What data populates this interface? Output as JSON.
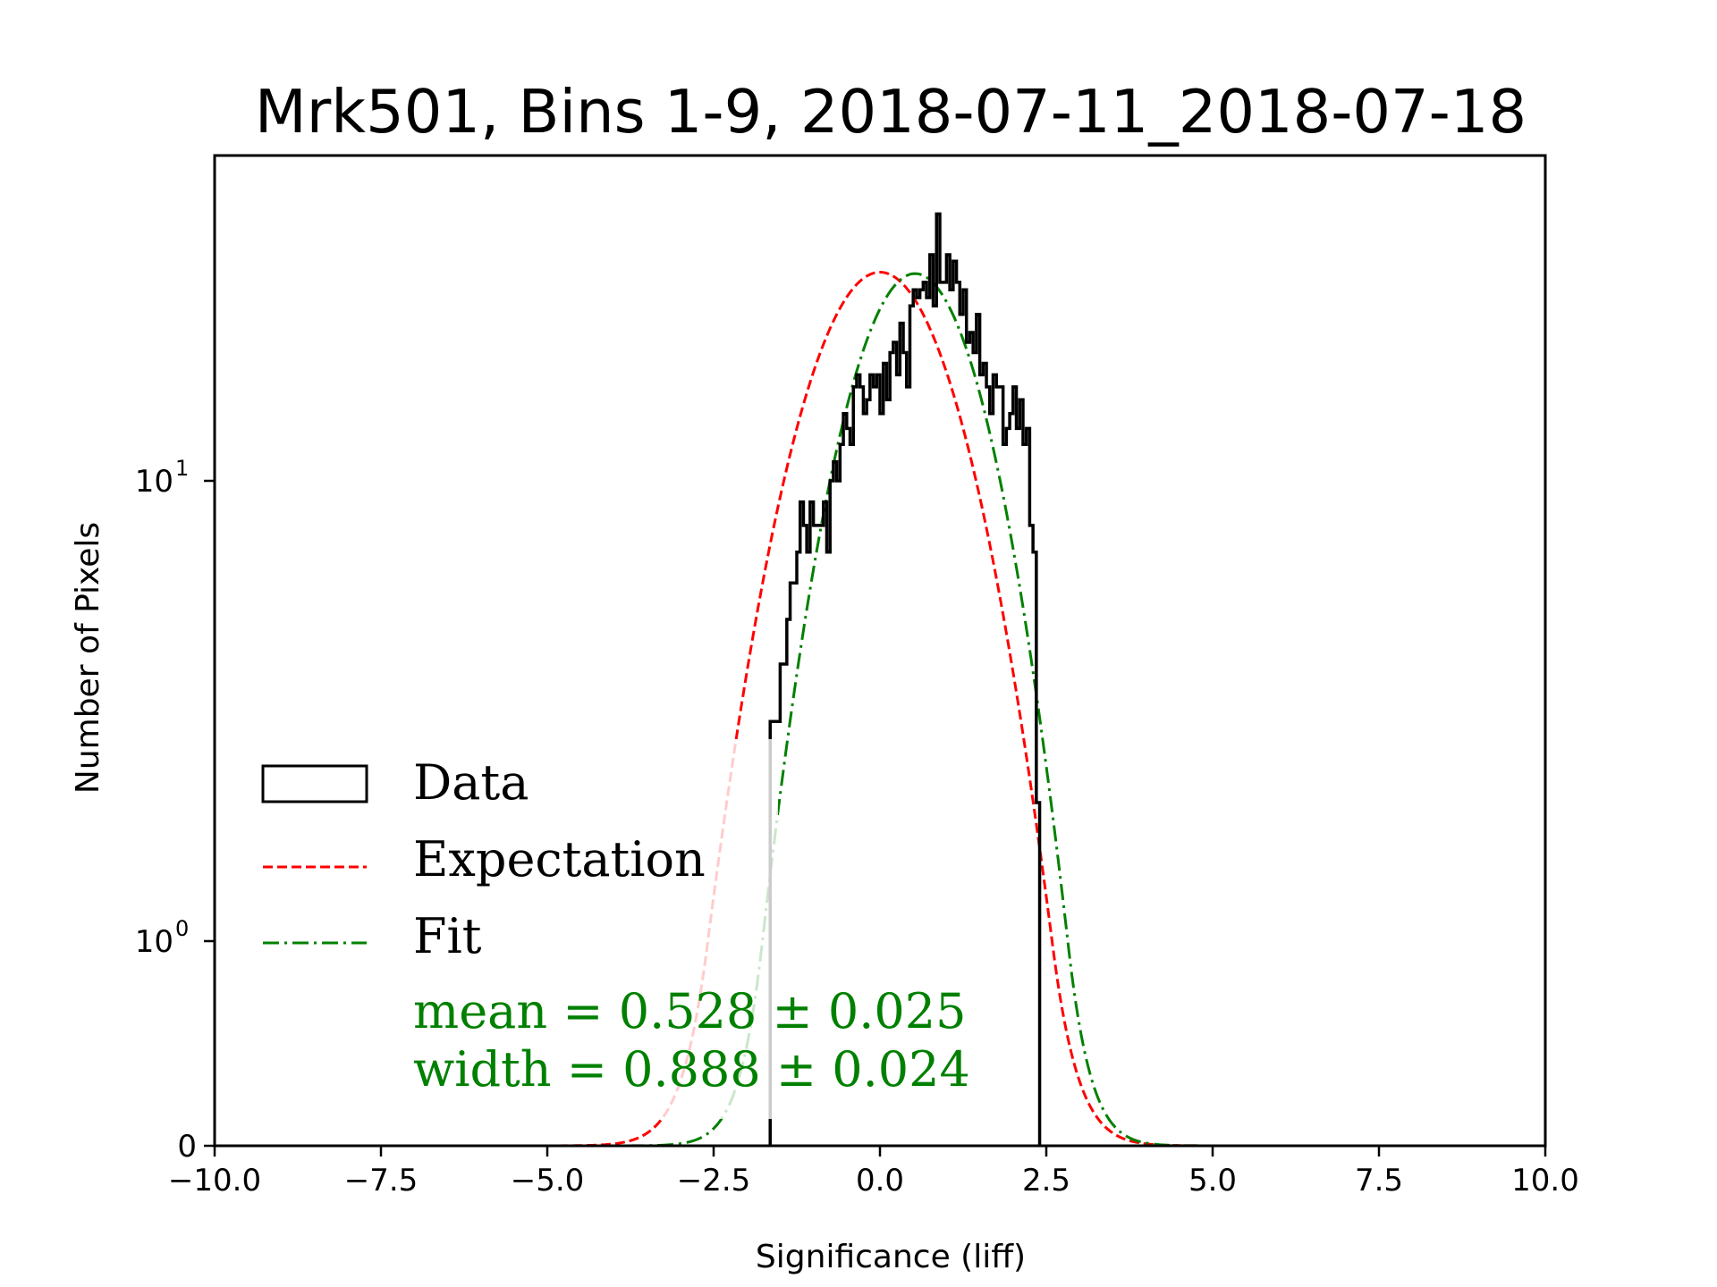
{
  "chart_data": {
    "type": "histogram",
    "title": "Mrk501, Bins 1-9, 2018-07-11_2018-07-18",
    "xlabel": "Significance (liff)",
    "ylabel": "Number of Pixels",
    "xlim": [
      -10.0,
      10.0
    ],
    "ylim": [
      0,
      51
    ],
    "yscale": "symlog",
    "y_linthresh": 1,
    "grid": false,
    "x_ticks": [
      -10.0,
      -7.5,
      -5.0,
      -2.5,
      0.0,
      2.5,
      5.0,
      7.5,
      10.0
    ],
    "x_tick_labels": [
      "−10.0",
      "−7.5",
      "−5.0",
      "−2.5",
      "0.0",
      "2.5",
      "5.0",
      "7.5",
      "10.0"
    ],
    "y_ticks": [
      {
        "value": 0,
        "base": "0",
        "exp": ""
      },
      {
        "value": 1,
        "base": "10",
        "exp": "0"
      },
      {
        "value": 10,
        "base": "10",
        "exp": "1"
      }
    ],
    "histogram": {
      "name": "Data",
      "color": "#000000",
      "bin_start": -1.65,
      "bin_width": 0.05,
      "counts": [
        3,
        3,
        3,
        4,
        4,
        5,
        6,
        6,
        7,
        9,
        8,
        7,
        9,
        8,
        8,
        8,
        9,
        7,
        10,
        11,
        10,
        12,
        14,
        13,
        12,
        16,
        17,
        16,
        14,
        15,
        17,
        16,
        17,
        14,
        18,
        15,
        19,
        20,
        17,
        22,
        19,
        16,
        24,
        26,
        25,
        26,
        27,
        25,
        31,
        24,
        38,
        27,
        27,
        31,
        26,
        30,
        27,
        23,
        26,
        20,
        21,
        19,
        23,
        17,
        18,
        16,
        14,
        17,
        16,
        16,
        12,
        13,
        14,
        16,
        13,
        15,
        12,
        13,
        8,
        7,
        2
      ]
    },
    "series": [
      {
        "name": "Expectation",
        "color": "#ff0000",
        "style": "dashed",
        "mean": 0.0,
        "width": 1.0,
        "amplitude": 28.4
      },
      {
        "name": "Fit",
        "color": "#008000",
        "style": "dashdot",
        "mean": 0.528,
        "width": 0.888,
        "amplitude": 28.2
      }
    ],
    "legend": {
      "position": "lower-left",
      "entries": [
        {
          "label": "Data",
          "kind": "patch"
        },
        {
          "label": "Expectation",
          "kind": "dashed-line"
        },
        {
          "label": "Fit",
          "kind": "dashdot-line"
        }
      ]
    },
    "annotations": [
      {
        "text": "mean = 0.528 ± 0.025",
        "color": "#008000"
      },
      {
        "text": "width = 0.888 ± 0.024",
        "color": "#008000"
      }
    ]
  }
}
